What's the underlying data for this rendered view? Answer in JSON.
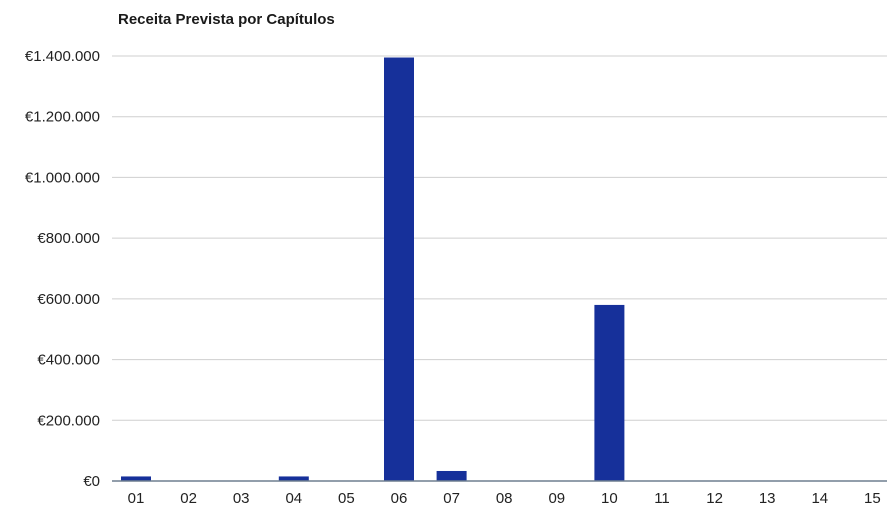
{
  "chart_data": {
    "type": "bar",
    "title": "Receita Prevista por Capítulos",
    "xlabel": "",
    "ylabel": "",
    "categories": [
      "01",
      "02",
      "03",
      "04",
      "05",
      "06",
      "07",
      "08",
      "09",
      "10",
      "11",
      "12",
      "13",
      "14",
      "15"
    ],
    "values": [
      15000,
      0,
      0,
      15000,
      0,
      1395000,
      33000,
      0,
      0,
      580000,
      0,
      0,
      0,
      0,
      0
    ],
    "ylim": [
      0,
      1400000
    ],
    "yticks": [
      0,
      200000,
      400000,
      600000,
      800000,
      1000000,
      1200000,
      1400000
    ],
    "ytick_labels": [
      "€0",
      "€200.000",
      "€400.000",
      "€600.000",
      "€800.000",
      "€1.000.000",
      "€1.200.000",
      "€1.400.000"
    ],
    "grid": true,
    "legend": "none",
    "bar_color": "#16309a"
  }
}
